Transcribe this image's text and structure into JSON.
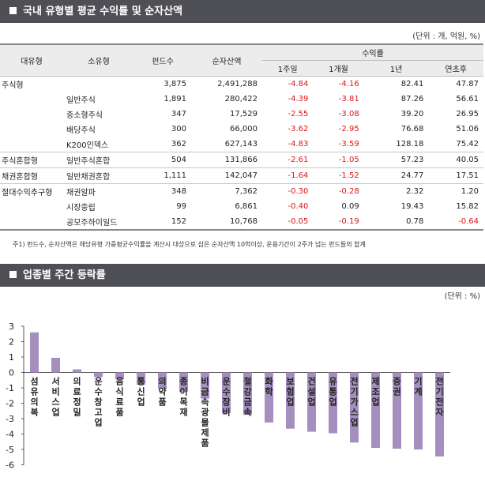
{
  "table_section": {
    "title": "국내 유형별 평균 수익률 및 순자산액",
    "unit": "(단위 : 개, 억원, %)",
    "headers": {
      "category": "대유형",
      "subcategory": "소유형",
      "fund_count": "펀드수",
      "net_assets": "순자산액",
      "returns": "수익률",
      "r1w": "1주일",
      "r1m": "1개월",
      "r1y": "1년",
      "ytd": "연초후"
    },
    "rows": [
      {
        "category": "주식형",
        "subcategory": "",
        "fund_count": "3,875",
        "net_assets": "2,491,288",
        "r1w": "-4.84",
        "r1m": "-4.16",
        "r1y": "82.41",
        "ytd": "47.87"
      },
      {
        "category": "",
        "subcategory": "일반주식",
        "fund_count": "1,891",
        "net_assets": "280,422",
        "r1w": "-4.39",
        "r1m": "-3.81",
        "r1y": "87.26",
        "ytd": "56.61"
      },
      {
        "category": "",
        "subcategory": "중소형주식",
        "fund_count": "347",
        "net_assets": "17,529",
        "r1w": "-2.55",
        "r1m": "-3.08",
        "r1y": "39.20",
        "ytd": "26.95"
      },
      {
        "category": "",
        "subcategory": "배당주식",
        "fund_count": "300",
        "net_assets": "66,000",
        "r1w": "-3.62",
        "r1m": "-2.95",
        "r1y": "76.68",
        "ytd": "51.06"
      },
      {
        "category": "",
        "subcategory": "K200인덱스",
        "fund_count": "362",
        "net_assets": "627,143",
        "r1w": "-4.83",
        "r1m": "-3.59",
        "r1y": "128.18",
        "ytd": "75.42"
      },
      {
        "category": "주식혼합형",
        "subcategory": "일반주식혼합",
        "fund_count": "504",
        "net_assets": "131,866",
        "r1w": "-2.61",
        "r1m": "-1.05",
        "r1y": "57.23",
        "ytd": "40.05"
      },
      {
        "category": "채권혼합형",
        "subcategory": "일반채권혼합",
        "fund_count": "1,111",
        "net_assets": "142,047",
        "r1w": "-1.64",
        "r1m": "-1.52",
        "r1y": "24.77",
        "ytd": "17.51"
      },
      {
        "category": "절대수익추구형",
        "subcategory": "채권알파",
        "fund_count": "348",
        "net_assets": "7,362",
        "r1w": "-0.30",
        "r1m": "-0.28",
        "r1y": "2.32",
        "ytd": "1.20"
      },
      {
        "category": "",
        "subcategory": "시장중립",
        "fund_count": "99",
        "net_assets": "6,861",
        "r1w": "-0.40",
        "r1m": "0.09",
        "r1y": "19.43",
        "ytd": "15.82"
      },
      {
        "category": "",
        "subcategory": "공모주하이일드",
        "fund_count": "152",
        "net_assets": "10,768",
        "r1w": "-0.05",
        "r1m": "-0.19",
        "r1y": "0.78",
        "ytd": "-0.64"
      }
    ],
    "footnote": "주1) 펀드수, 순자산액은 해당유형 가중평균수익률을 계산시 대상으로 삼은 순자산액 10억이상, 운용기간이 2주가 넘는 펀드들의 합계"
  },
  "chart_section": {
    "title": "업종별 주간 등락률",
    "unit": "(단위 : %)"
  },
  "colors": {
    "header_bg": "#4f4f56",
    "bar": "#a58fbf",
    "negative_text": "#d9181b"
  },
  "chart_data": {
    "type": "bar",
    "categories": [
      "섬유의복",
      "서비스업",
      "의료정밀",
      "운수창고업",
      "음식료품",
      "통신업",
      "의약품",
      "종이목재",
      "비금속광물제품",
      "운수장비",
      "철강금속",
      "화학",
      "보험업",
      "건설업",
      "유통업",
      "전기가스업",
      "제조업",
      "증권",
      "기계",
      "전기전자"
    ],
    "values": [
      2.6,
      0.95,
      0.2,
      -0.3,
      -0.45,
      -0.8,
      -1.05,
      -1.25,
      -1.7,
      -2.65,
      -2.75,
      -3.25,
      -3.65,
      -3.85,
      -3.95,
      -4.55,
      -4.9,
      -4.95,
      -5.0,
      -5.45
    ],
    "ylim": [
      -6,
      3
    ],
    "yticks": [
      3,
      2,
      1,
      0,
      -1,
      -2,
      -3,
      -4,
      -5,
      -6
    ]
  }
}
